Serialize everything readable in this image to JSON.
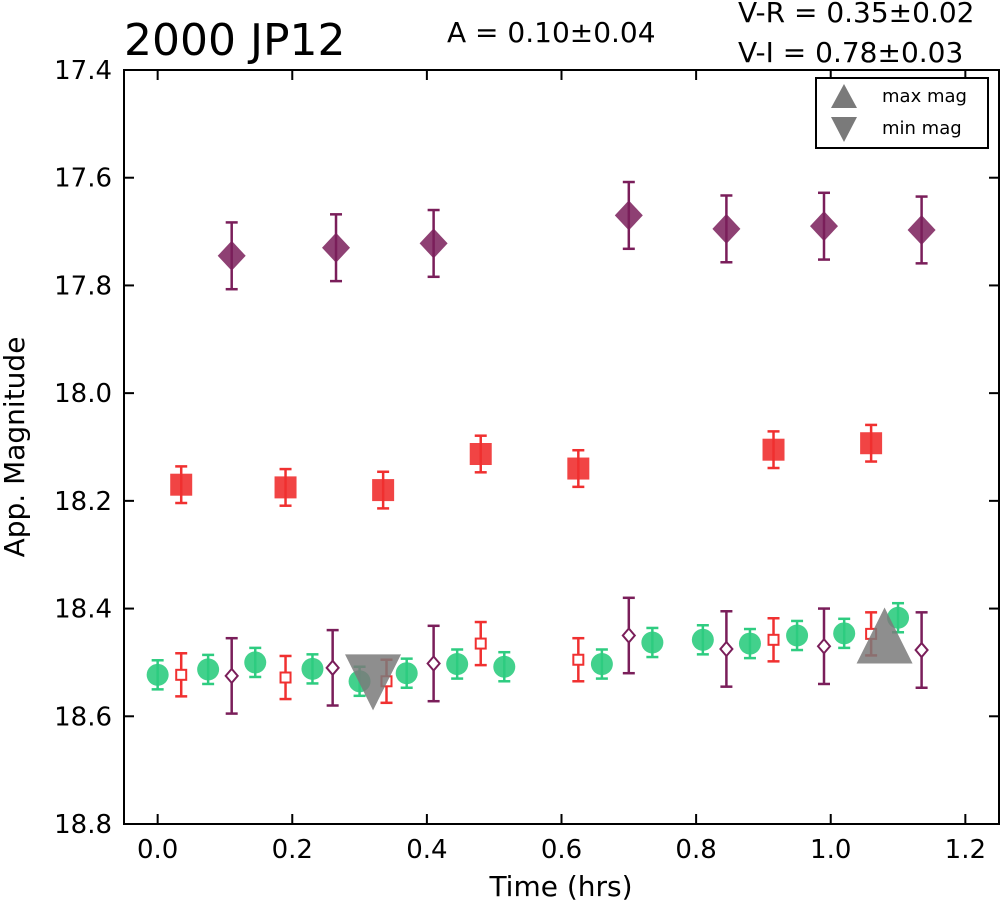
{
  "chart_data": {
    "type": "scatter",
    "title": "2000 JP12",
    "annotations": {
      "amplitude": "A  = 0.10±0.04",
      "v_r": "V-R = 0.35±0.02",
      "v_i": "V-I  = 0.78±0.03"
    },
    "xlabel": "Time (hrs)",
    "ylabel": "App. Magnitude",
    "xlim": [
      -0.05,
      1.25
    ],
    "ylim": [
      18.8,
      17.4
    ],
    "y_inverted": true,
    "x_ticks": [
      "0.0",
      "0.2",
      "0.4",
      "0.6",
      "0.8",
      "1.0",
      "1.2"
    ],
    "y_ticks": [
      "17.4",
      "17.6",
      "17.8",
      "18.0",
      "18.2",
      "18.4",
      "18.6",
      "18.8"
    ],
    "grid": false,
    "legend_position": "top-right",
    "legend": [
      {
        "label": "max mag",
        "marker": "triangle-up"
      },
      {
        "label": "min mag",
        "marker": "triangle-down"
      }
    ],
    "colors": {
      "green": "#2ecc80",
      "red": "#f03030",
      "purple": "#7a1e5a",
      "gray": "#7a7a7a"
    },
    "series": [
      {
        "marker": "diamond-filled",
        "color": "#7a1e5a",
        "points": [
          {
            "x": 0.11,
            "y": 17.745,
            "err": 0.062
          },
          {
            "x": 0.265,
            "y": 17.73,
            "err": 0.062
          },
          {
            "x": 0.41,
            "y": 17.722,
            "err": 0.062
          },
          {
            "x": 0.7,
            "y": 17.67,
            "err": 0.062
          },
          {
            "x": 0.845,
            "y": 17.695,
            "err": 0.062
          },
          {
            "x": 0.99,
            "y": 17.69,
            "err": 0.062
          },
          {
            "x": 1.135,
            "y": 17.697,
            "err": 0.062
          }
        ]
      },
      {
        "marker": "square-filled",
        "color": "#f03030",
        "points": [
          {
            "x": 0.035,
            "y": 18.17,
            "err": 0.034
          },
          {
            "x": 0.19,
            "y": 18.175,
            "err": 0.034
          },
          {
            "x": 0.335,
            "y": 18.18,
            "err": 0.034
          },
          {
            "x": 0.48,
            "y": 18.113,
            "err": 0.034
          },
          {
            "x": 0.625,
            "y": 18.14,
            "err": 0.034
          },
          {
            "x": 0.915,
            "y": 18.105,
            "err": 0.034
          },
          {
            "x": 1.06,
            "y": 18.093,
            "err": 0.034
          }
        ]
      },
      {
        "marker": "circle-filled",
        "color": "#2ecc80",
        "points": [
          {
            "x": 0.0,
            "y": 18.523,
            "err": 0.027
          },
          {
            "x": 0.075,
            "y": 18.513,
            "err": 0.027
          },
          {
            "x": 0.145,
            "y": 18.5,
            "err": 0.027
          },
          {
            "x": 0.23,
            "y": 18.512,
            "err": 0.027
          },
          {
            "x": 0.3,
            "y": 18.535,
            "err": 0.027
          },
          {
            "x": 0.37,
            "y": 18.52,
            "err": 0.027
          },
          {
            "x": 0.445,
            "y": 18.503,
            "err": 0.027
          },
          {
            "x": 0.515,
            "y": 18.508,
            "err": 0.027
          },
          {
            "x": 0.66,
            "y": 18.503,
            "err": 0.027
          },
          {
            "x": 0.735,
            "y": 18.463,
            "err": 0.027
          },
          {
            "x": 0.81,
            "y": 18.458,
            "err": 0.027
          },
          {
            "x": 0.88,
            "y": 18.465,
            "err": 0.027
          },
          {
            "x": 0.95,
            "y": 18.45,
            "err": 0.027
          },
          {
            "x": 1.02,
            "y": 18.446,
            "err": 0.027
          },
          {
            "x": 1.1,
            "y": 18.417,
            "err": 0.027
          }
        ]
      },
      {
        "marker": "square-open",
        "color": "#f03030",
        "points": [
          {
            "x": 0.035,
            "y": 18.523,
            "err": 0.04
          },
          {
            "x": 0.19,
            "y": 18.528,
            "err": 0.04
          },
          {
            "x": 0.34,
            "y": 18.535,
            "err": 0.04
          },
          {
            "x": 0.48,
            "y": 18.465,
            "err": 0.04
          },
          {
            "x": 0.625,
            "y": 18.495,
            "err": 0.04
          },
          {
            "x": 0.915,
            "y": 18.458,
            "err": 0.04
          },
          {
            "x": 1.06,
            "y": 18.447,
            "err": 0.04
          }
        ]
      },
      {
        "marker": "diamond-open",
        "color": "#7a1e5a",
        "points": [
          {
            "x": 0.11,
            "y": 18.525,
            "err": 0.07
          },
          {
            "x": 0.26,
            "y": 18.51,
            "err": 0.07
          },
          {
            "x": 0.41,
            "y": 18.502,
            "err": 0.07
          },
          {
            "x": 0.7,
            "y": 18.45,
            "err": 0.07
          },
          {
            "x": 0.845,
            "y": 18.475,
            "err": 0.07
          },
          {
            "x": 0.99,
            "y": 18.47,
            "err": 0.07
          },
          {
            "x": 1.135,
            "y": 18.477,
            "err": 0.07
          }
        ]
      }
    ],
    "extrema": [
      {
        "type": "min",
        "marker": "triangle-down",
        "x": 0.32,
        "y": 18.537
      },
      {
        "type": "max",
        "marker": "triangle-up",
        "x": 1.08,
        "y": 18.45
      }
    ]
  }
}
